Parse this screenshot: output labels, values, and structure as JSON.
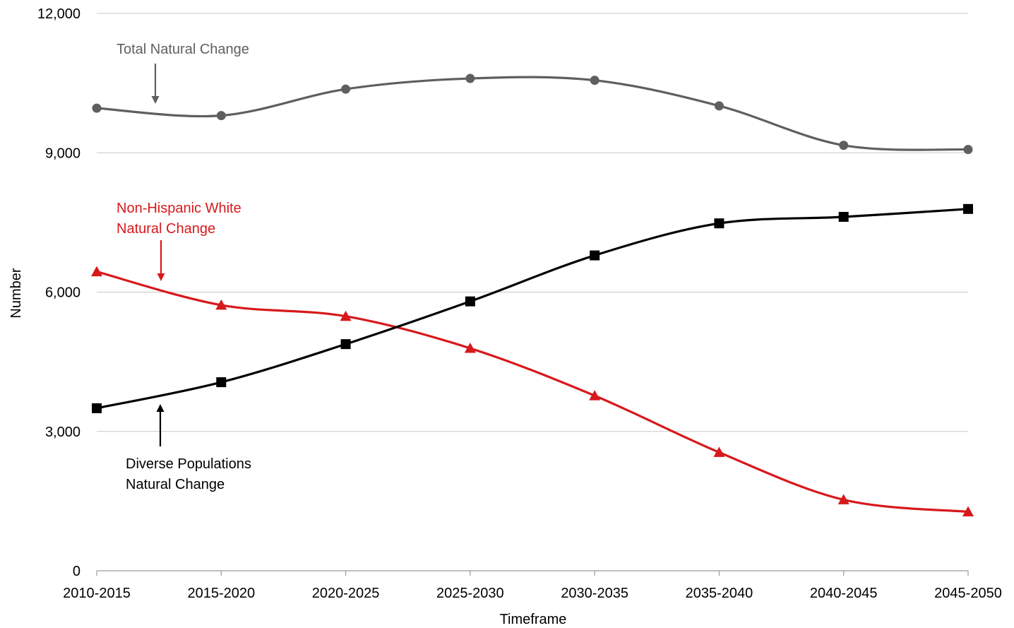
{
  "chart_data": {
    "type": "line",
    "xlabel": "Timeframe",
    "ylabel": "Number",
    "categories": [
      "2010-2015",
      "2015-2020",
      "2020-2025",
      "2025-2030",
      "2030-2035",
      "2035-2040",
      "2040-2045",
      "2045-2050"
    ],
    "ylim": [
      0,
      12000
    ],
    "yticks": [
      0,
      3000,
      6000,
      9000,
      12000
    ],
    "ytick_labels": [
      "0",
      "3,000",
      "6,000",
      "9,000",
      "12,000"
    ],
    "grid": "horizontal",
    "legend": "none",
    "series": [
      {
        "key": "total",
        "values": [
          9960,
          9800,
          10370,
          10600,
          10560,
          10010,
          9160,
          9070
        ],
        "color": "#5f5f5f",
        "marker": "circle"
      },
      {
        "key": "nhw",
        "values": [
          6440,
          5720,
          5480,
          4790,
          3770,
          2550,
          1530,
          1270
        ],
        "color": "#d7191c",
        "marker": "triangle"
      },
      {
        "key": "diverse",
        "values": [
          3500,
          4060,
          4880,
          5800,
          6790,
          7480,
          7620,
          7790
        ],
        "color": "#000000",
        "marker": "square"
      }
    ],
    "annotations": [
      {
        "key": "total",
        "lines": [
          "Total Natural Change"
        ],
        "color": "#5f5f5f",
        "arrow": "down",
        "arrow_from": 9
      },
      {
        "key": "nhw",
        "lines": [
          "Non-Hispanic White",
          "Natural Change"
        ],
        "color": "#d7191c",
        "arrow": "down",
        "arrow_from": 6
      },
      {
        "key": "diverse",
        "lines": [
          "Diverse Populations",
          "Natural Change"
        ],
        "color": "#000000",
        "arrow": "up",
        "arrow_from": 3
      }
    ]
  }
}
